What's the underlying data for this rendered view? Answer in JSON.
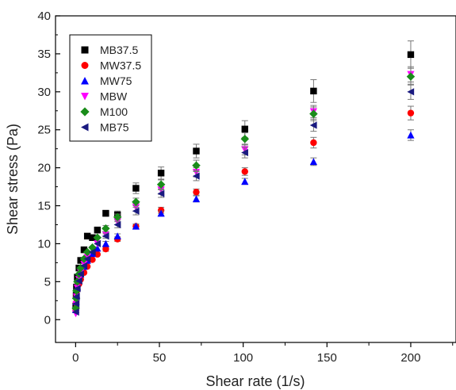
{
  "chart_data": {
    "type": "scatter",
    "title": "",
    "xlabel": "Shear rate (1/s)",
    "ylabel": "Shear stress (Pa)",
    "xlim": [
      -12,
      227
    ],
    "ylim": [
      -3,
      40
    ],
    "xticks": [
      0,
      50,
      100,
      150,
      200
    ],
    "yticks": [
      0,
      5,
      10,
      15,
      20,
      25,
      30,
      35,
      40
    ],
    "grid": false,
    "legend": "top-left",
    "series": [
      {
        "name": "MB37.5",
        "color": "#000000",
        "marker": "square",
        "x": [
          0.1,
          0.3,
          0.5,
          1,
          2,
          3,
          5,
          7,
          10,
          13,
          18,
          25,
          36,
          51,
          72,
          101,
          142,
          200
        ],
        "y": [
          1.8,
          3.2,
          4.3,
          5.6,
          6.8,
          7.8,
          9.2,
          11.0,
          10.8,
          11.8,
          14.0,
          13.8,
          17.3,
          19.3,
          22.2,
          25.1,
          30.1,
          34.9
        ],
        "err": [
          0,
          0,
          0,
          0,
          0,
          0,
          0,
          0,
          0,
          0.4,
          0.4,
          0.5,
          0.7,
          0.8,
          0.9,
          1.1,
          1.5,
          1.8
        ]
      },
      {
        "name": "MW37.5",
        "color": "#ff0000",
        "marker": "circle",
        "x": [
          0.1,
          0.3,
          0.5,
          1,
          2,
          3,
          5,
          7,
          10,
          13,
          18,
          25,
          36,
          51,
          72,
          101,
          142,
          200
        ],
        "y": [
          1.2,
          2.2,
          3.0,
          3.9,
          4.7,
          5.3,
          6.2,
          7.0,
          7.9,
          8.6,
          9.3,
          10.6,
          12.3,
          14.4,
          16.8,
          19.5,
          23.3,
          27.2
        ],
        "err": [
          0,
          0,
          0,
          0,
          0,
          0,
          0,
          0,
          0,
          0,
          0.3,
          0.3,
          0.3,
          0.4,
          0.4,
          0.5,
          0.7,
          0.9
        ]
      },
      {
        "name": "MW75",
        "color": "#0000ff",
        "marker": "triangle-up",
        "x": [
          0.1,
          0.3,
          0.5,
          1,
          2,
          3,
          5,
          7,
          10,
          13,
          18,
          25,
          36,
          51,
          72,
          101,
          142,
          200
        ],
        "y": [
          1.3,
          2.4,
          3.3,
          4.3,
          5.2,
          6.0,
          7.0,
          7.8,
          8.7,
          9.4,
          10.0,
          11.0,
          12.3,
          14.0,
          15.9,
          18.2,
          20.8,
          24.3
        ],
        "err": [
          0,
          0,
          0,
          0,
          0,
          0,
          0,
          0,
          0,
          0,
          0.3,
          0.3,
          0.3,
          0.3,
          0.4,
          0.4,
          0.5,
          0.7
        ]
      },
      {
        "name": "MBW",
        "color": "#ff00ff",
        "marker": "triangle-down",
        "x": [
          0.1,
          0.3,
          0.5,
          1,
          2,
          3,
          5,
          7,
          10,
          13,
          18,
          25,
          36,
          51,
          72,
          101,
          142,
          200
        ],
        "y": [
          0.8,
          2.0,
          3.0,
          4.2,
          5.3,
          6.2,
          7.3,
          8.2,
          9.2,
          10.0,
          11.2,
          12.9,
          14.8,
          17.1,
          19.4,
          22.4,
          27.4,
          32.3
        ],
        "err": [
          0,
          0,
          0,
          0,
          0,
          0,
          0,
          0,
          0,
          0,
          0.3,
          0.4,
          0.5,
          0.6,
          0.6,
          0.7,
          0.8,
          1.0
        ]
      },
      {
        "name": "M100",
        "color": "#1a8c1a",
        "marker": "diamond",
        "x": [
          0.1,
          0.3,
          0.5,
          1,
          2,
          3,
          5,
          7,
          10,
          13,
          18,
          25,
          36,
          51,
          72,
          101,
          142,
          200
        ],
        "y": [
          1.5,
          2.8,
          3.8,
          5.0,
          6.0,
          6.8,
          8.0,
          8.9,
          9.5,
          10.8,
          12.0,
          13.5,
          15.5,
          17.8,
          20.3,
          23.8,
          27.1,
          32.0
        ],
        "err": [
          0,
          0,
          0,
          0,
          0,
          0,
          0,
          0,
          0,
          0,
          0.4,
          0.4,
          0.5,
          0.6,
          0.7,
          0.8,
          0.9,
          1.1
        ]
      },
      {
        "name": "MB75",
        "color": "#1a1a80",
        "marker": "triangle-left",
        "x": [
          0.1,
          0.3,
          0.5,
          1,
          2,
          3,
          5,
          7,
          10,
          13,
          18,
          25,
          36,
          51,
          72,
          101,
          142,
          200
        ],
        "y": [
          1.0,
          2.1,
          3.0,
          4.1,
          5.1,
          6.0,
          7.1,
          8.0,
          8.9,
          10.0,
          11.0,
          12.5,
          14.3,
          16.6,
          18.9,
          22.0,
          25.6,
          30.0
        ],
        "err": [
          0,
          0,
          0,
          0,
          0,
          0,
          0,
          0,
          0,
          0,
          0.3,
          0.4,
          0.5,
          0.5,
          0.6,
          0.7,
          0.8,
          1.0
        ]
      }
    ]
  }
}
